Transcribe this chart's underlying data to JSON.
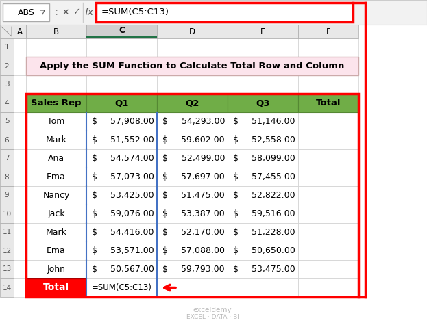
{
  "title": "Apply the SUM Function to Calculate Total Row and Column",
  "title_bg": "#FCE4EC",
  "formula_bar_text": "=SUM(C5:C13)",
  "col_letters": [
    "A",
    "B",
    "C",
    "D",
    "E",
    "F"
  ],
  "header_row": [
    "Sales Rep",
    "Q1",
    "Q2",
    "Q3",
    "Total"
  ],
  "header_bg": "#70AD47",
  "data_rows": [
    [
      "Tom",
      "$",
      "57,908.00",
      "$",
      "54,293.00",
      "$",
      "51,146.00"
    ],
    [
      "Mark",
      "$",
      "51,552.00",
      "$",
      "59,602.00",
      "$",
      "52,558.00"
    ],
    [
      "Ana",
      "$",
      "54,574.00",
      "$",
      "52,499.00",
      "$",
      "58,099.00"
    ],
    [
      "Ema",
      "$",
      "57,073.00",
      "$",
      "57,697.00",
      "$",
      "57,455.00"
    ],
    [
      "Nancy",
      "$",
      "53,425.00",
      "$",
      "51,475.00",
      "$",
      "52,822.00"
    ],
    [
      "Jack",
      "$",
      "59,076.00",
      "$",
      "53,387.00",
      "$",
      "59,516.00"
    ],
    [
      "Mark",
      "$",
      "54,416.00",
      "$",
      "52,170.00",
      "$",
      "51,228.00"
    ],
    [
      "Ema",
      "$",
      "53,571.00",
      "$",
      "57,088.00",
      "$",
      "50,650.00"
    ],
    [
      "John",
      "$",
      "50,567.00",
      "$",
      "59,793.00",
      "$",
      "53,475.00"
    ]
  ],
  "total_row_label": "Total",
  "total_row_formula": "=SUM(C5:C13)",
  "total_bg": "#FF0000",
  "total_text_color": "#FFFFFF",
  "arrow_color": "#FF0000",
  "red_border_color": "#FF0000",
  "formula_bar_border": "#FF0000",
  "watermark_line1": "exceldemy",
  "watermark_line2": "EXCEL · DATA · BI",
  "col_header_selected_bg": "#D9D9D9",
  "col_header_normal_bg": "#E8E8E8",
  "selected_col_indicator": "#217346"
}
